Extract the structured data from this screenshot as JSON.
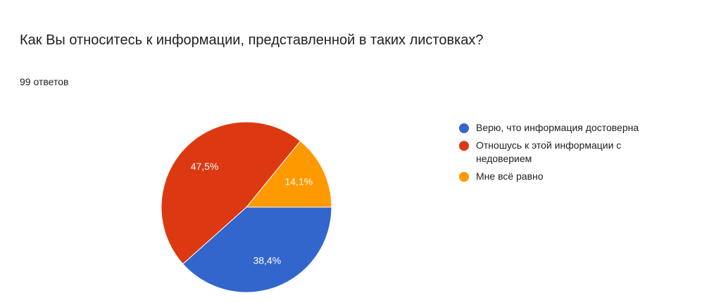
{
  "chart_data": {
    "type": "pie",
    "title": "Как Вы относитесь к информации, представленной в таких листовках?",
    "subtitle": "99 ответов",
    "categories": [
      "Верю, что информация достоверна",
      "Отношусь к этой информации с недоверием",
      "Мне всё равно"
    ],
    "values": [
      38.4,
      47.5,
      14.1
    ],
    "value_labels": [
      "38,4%",
      "47,5%",
      "14,1%"
    ],
    "colors": [
      "#3366cc",
      "#dc3912",
      "#ff9900"
    ],
    "legend": "right"
  }
}
